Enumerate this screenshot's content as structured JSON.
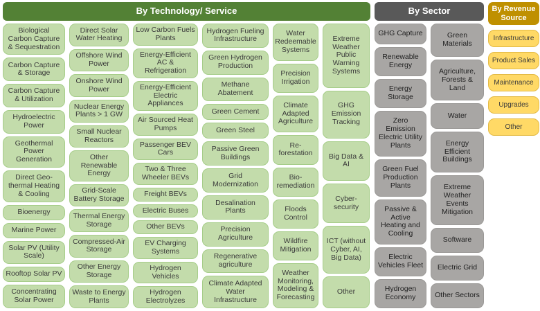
{
  "palette": {
    "technology_header_bg": "#538135",
    "technology_box_bg": "#c3dcab",
    "technology_box_border": "#a6cd89",
    "sector_header_bg": "#595959",
    "sector_box_bg": "#a8a6a4",
    "revenue_header_bg": "#bf9000",
    "revenue_box_bg": "#ffd966",
    "header_text": "#ffffff",
    "box_text": "#3b3b3b"
  },
  "groups": {
    "technology": {
      "header": "By Technology/ Service",
      "columns": [
        {
          "items": [
            "Biological Carbon Capture & Sequestration",
            "Carbon Capture & Storage",
            "Carbon Capture & Utilization",
            "Hydroelectric Power",
            "Geothermal Power Generation",
            "Direct Geo-thermal Heating & Cooling",
            "Bioenergy",
            "Marine Power",
            "Solar PV (Utility Scale)",
            "Rooftop Solar PV",
            "Concentrating Solar Power"
          ]
        },
        {
          "items": [
            "Direct Solar Water Heating",
            "Offshore Wind Power",
            "Onshore Wind Power",
            "Nuclear Energy Plants > 1 GW",
            "Small Nuclear Reactors",
            "Other Renewable Energy",
            "Grid-Scale Battery Storage",
            "Thermal Energy Storage",
            "Compressed-Air Storage",
            "Other Energy Storage",
            "Waste to Energy Plants"
          ]
        },
        {
          "items": [
            "Low Carbon Fuels Plants",
            "Energy-Efficient AC & Refrigeration",
            "Energy-Efficient Electric Appliances",
            "Air Sourced Heat Pumps",
            "Passenger BEV Cars",
            "Two & Three Wheeler BEVs",
            "Freight BEVs",
            "Electric Buses",
            "Other BEVs",
            "EV Charging Systems",
            "Hydrogen Vehicles",
            "Hydrogen Electrolyzes"
          ]
        },
        {
          "items": [
            "Hydrogen Fueling Infrastructure",
            "Green Hydrogen Production",
            "Methane Abatement",
            "Green Cement",
            "Green Steel",
            "Passive Green Buildings",
            "Grid Modernization",
            "Desalination Plants",
            "Precision Agriculture",
            "Regenerative agriculture",
            "Climate Adapted Water Infrastructure"
          ]
        },
        {
          "items": [
            "Water Redeemable Systems",
            "Precision Irrigation",
            "Climate Adapted Agriculture",
            "Re-forestation",
            "Bio-remediation",
            "Floods Control",
            "Wildfire Mitigation",
            "Weather Monitoring, Modeling & Forecasting"
          ]
        },
        {
          "items": [
            "Extreme Weather Public Warning Systems",
            "GHG Emission Tracking",
            "Big Data & AI",
            "Cyber-security",
            "ICT (without Cyber, AI, Big Data)",
            "Other"
          ]
        }
      ]
    },
    "sector": {
      "header": "By Sector",
      "columns": [
        {
          "items": [
            "GHG Capture",
            "Renewable Energy",
            "Energy Storage",
            "Zero Emission Electric Utility Plants",
            "Green Fuel Production Plants",
            "Passive & Active Heating and Cooling",
            "Electric Vehicles Fleet",
            "Hydrogen Economy"
          ]
        },
        {
          "items": [
            "Green Materials",
            "Agriculture, Forests & Land",
            "Water",
            "Energy Efficient Buildings",
            "Extreme Weather Events Mitigation",
            "Software",
            "Electric Grid",
            "Other Sectors"
          ]
        }
      ]
    },
    "revenue": {
      "header": "By Revenue Source",
      "columns": [
        {
          "items": [
            "Infrastructure",
            "Product Sales",
            "Maintenance",
            "Upgrades",
            "Other"
          ]
        }
      ]
    }
  }
}
